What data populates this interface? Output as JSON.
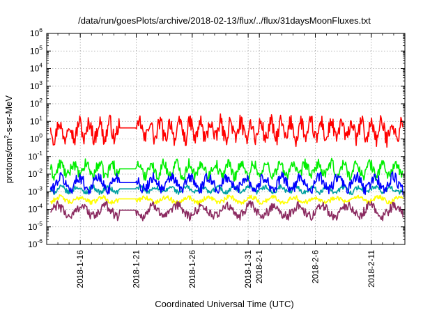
{
  "chart_data": {
    "type": "line",
    "title": "/data/run/goesPlots/archive/2018-02-13/flux/../flux/31daysMoonFluxes.txt",
    "xlabel": "Coordinated Universal Time (UTC)",
    "ylabel": {
      "base": "protons/cm",
      "sup": "2",
      "rest": "-s-sr-MeV"
    },
    "yscale": "log",
    "ylim": [
      1e-06,
      1000000.0
    ],
    "y_ticks": [
      {
        "base": "10",
        "exp": "-6"
      },
      {
        "base": "10",
        "exp": "-5"
      },
      {
        "base": "10",
        "exp": "-4"
      },
      {
        "base": "10",
        "exp": "-3"
      },
      {
        "base": "10",
        "exp": "-2"
      },
      {
        "base": "10",
        "exp": "-1"
      },
      {
        "base": "10",
        "exp": "0"
      },
      {
        "base": "10",
        "exp": "1"
      },
      {
        "base": "10",
        "exp": "2"
      },
      {
        "base": "10",
        "exp": "3"
      },
      {
        "base": "10",
        "exp": "4"
      },
      {
        "base": "10",
        "exp": "5"
      },
      {
        "base": "10",
        "exp": "6"
      }
    ],
    "xlim": [
      "2018-01-13",
      "2018-02-14"
    ],
    "x_ticks": [
      {
        "date": "2018-01-16",
        "label": "2018-1-16"
      },
      {
        "date": "2018-01-21",
        "label": "2018-1-21"
      },
      {
        "date": "2018-01-26",
        "label": "2018-1-26"
      },
      {
        "date": "2018-01-31",
        "label": "2018-1-31"
      },
      {
        "date": "2018-02-01",
        "label": "2018-2-1"
      },
      {
        "date": "2018-02-06",
        "label": "2018-2-6"
      },
      {
        "date": "2018-02-11",
        "label": "2018-2-11"
      }
    ],
    "grid": true,
    "legend": "none",
    "series": [
      {
        "color": "#ff0000",
        "level": 3.0,
        "amplitude_decades": 0.5,
        "values_sample": [
          1,
          5,
          10,
          2,
          5,
          0.7,
          3,
          8,
          1.5,
          3
        ]
      },
      {
        "color": "#00ee00",
        "level": 0.018,
        "amplitude_decades": 0.35,
        "values_sample": [
          0.05,
          0.01,
          0.03,
          0.008,
          0.02,
          0.06,
          0.012
        ]
      },
      {
        "color": "#00a0a0",
        "level": 0.0013,
        "amplitude_decades": 0.15,
        "values_sample": [
          0.001,
          0.0015,
          0.002,
          0.001,
          0.0012
        ]
      },
      {
        "color": "#0000ff",
        "level": 0.003,
        "amplitude_decades": 0.35,
        "values_sample": [
          0.005,
          0.001,
          0.003,
          0.008,
          0.0015,
          0.004
        ]
      },
      {
        "color": "#ffff00",
        "level": 0.00035,
        "amplitude_decades": 0.15,
        "values_sample": [
          0.0003,
          0.0005,
          0.0002,
          0.0004
        ]
      },
      {
        "color": "#8b2a60",
        "level": 8e-05,
        "amplitude_decades": 0.3,
        "values_sample": [
          0.0001,
          3e-05,
          8e-05,
          0.0002,
          5e-05
        ]
      }
    ],
    "data_gap": [
      "2018-01-19T12:00",
      "2018-01-21T00:00"
    ]
  }
}
